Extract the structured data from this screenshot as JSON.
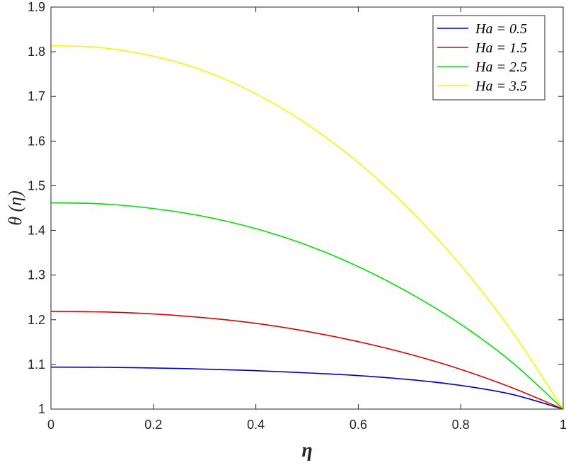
{
  "chart_data": {
    "type": "line",
    "xlabel": "η",
    "ylabel": "θ (η)",
    "xlim": [
      0,
      1
    ],
    "ylim": [
      1,
      1.9
    ],
    "x_ticks": [
      "0",
      "0.2",
      "0.4",
      "0.6",
      "0.8",
      "1"
    ],
    "y_ticks": [
      "1",
      "1.1",
      "1.2",
      "1.3",
      "1.4",
      "1.5",
      "1.6",
      "1.7",
      "1.8",
      "1.9"
    ],
    "legend_position": "top-right",
    "grid": false,
    "x": [
      0,
      0.1,
      0.2,
      0.3,
      0.4,
      0.5,
      0.6,
      0.7,
      0.8,
      0.9,
      1.0
    ],
    "series": [
      {
        "name": "Ha = 0.5",
        "color": "#0000cc",
        "values": [
          1.094,
          1.0935,
          1.092,
          1.0895,
          1.086,
          1.081,
          1.075,
          1.066,
          1.053,
          1.033,
          1.0
        ]
      },
      {
        "name": "Ha = 1.5",
        "color": "#e00000",
        "values": [
          1.219,
          1.2175,
          1.213,
          1.2045,
          1.192,
          1.174,
          1.151,
          1.123,
          1.089,
          1.048,
          1.0
        ]
      },
      {
        "name": "Ha = 2.5",
        "color": "#00e000",
        "values": [
          1.462,
          1.4595,
          1.449,
          1.431,
          1.404,
          1.367,
          1.319,
          1.26,
          1.19,
          1.105,
          1.0
        ]
      },
      {
        "name": "Ha = 3.5",
        "color": "#f5f500",
        "values": [
          1.814,
          1.809,
          1.79,
          1.757,
          1.706,
          1.638,
          1.552,
          1.447,
          1.322,
          1.174,
          1.0
        ]
      }
    ]
  }
}
